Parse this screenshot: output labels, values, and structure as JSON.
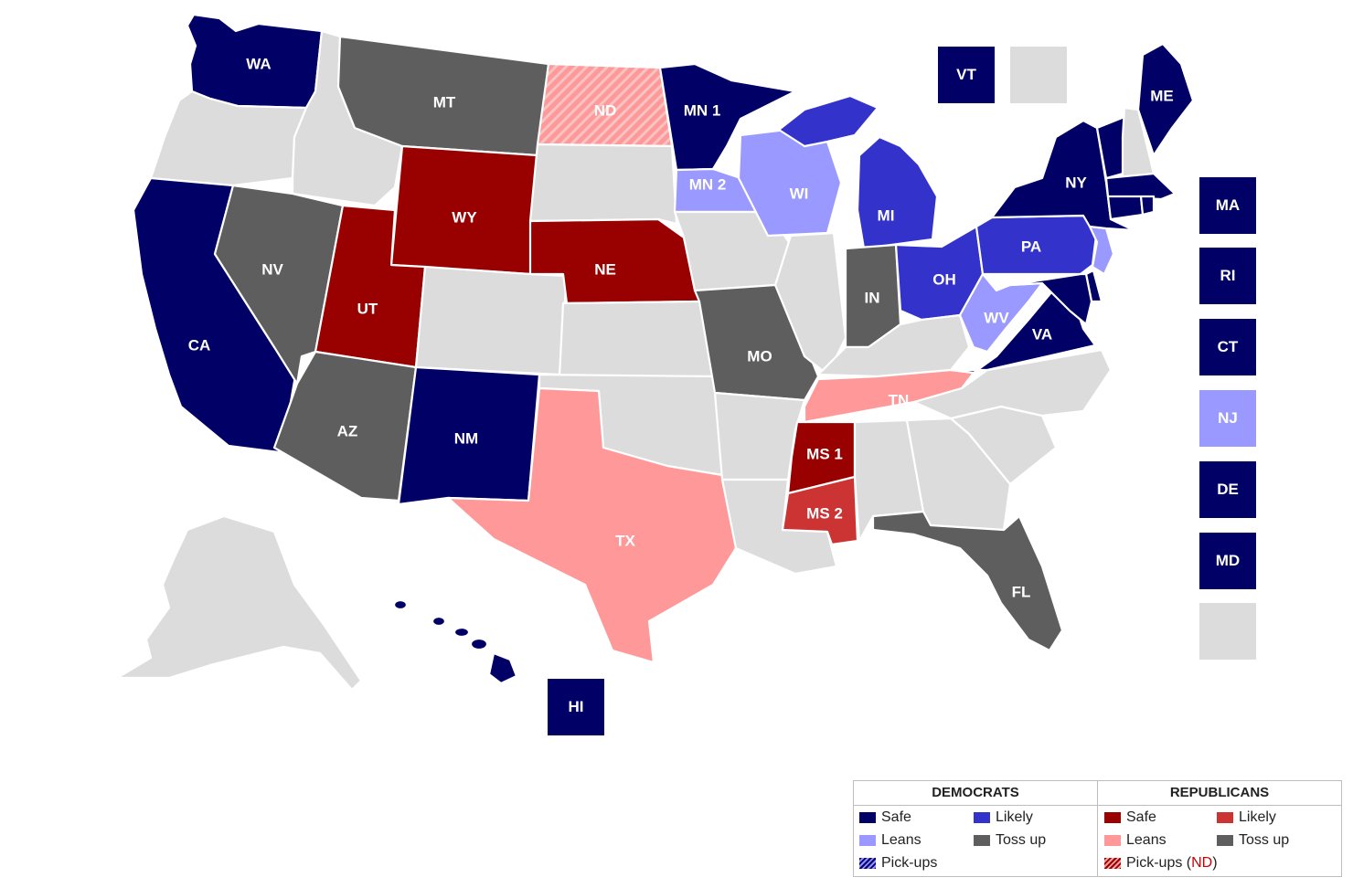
{
  "colors": {
    "dem_safe": "#000066",
    "dem_likely": "#3333cc",
    "dem_leans": "#9999ff",
    "tossup": "#5e5e5e",
    "rep_safe": "#990000",
    "rep_likely": "#cc3333",
    "rep_leans": "#ff9999",
    "no_race": "#dcdcdc"
  },
  "states": {
    "WA": {
      "label": "WA",
      "status": "dem_safe"
    },
    "OR": {
      "label": "",
      "status": "no_race"
    },
    "CA": {
      "label": "CA",
      "status": "dem_safe"
    },
    "ID": {
      "label": "",
      "status": "no_race"
    },
    "NV": {
      "label": "NV",
      "status": "tossup"
    },
    "MT": {
      "label": "MT",
      "status": "tossup"
    },
    "WY": {
      "label": "WY",
      "status": "rep_safe"
    },
    "UT": {
      "label": "UT",
      "status": "rep_safe"
    },
    "AZ": {
      "label": "AZ",
      "status": "tossup"
    },
    "CO": {
      "label": "",
      "status": "no_race"
    },
    "NM": {
      "label": "NM",
      "status": "dem_safe"
    },
    "ND": {
      "label": "ND",
      "status": "rep_leans",
      "pickup": true
    },
    "SD": {
      "label": "",
      "status": "no_race"
    },
    "NE": {
      "label": "NE",
      "status": "rep_safe"
    },
    "KS": {
      "label": "",
      "status": "no_race"
    },
    "OK": {
      "label": "",
      "status": "no_race"
    },
    "TX": {
      "label": "TX",
      "status": "rep_leans"
    },
    "MN1": {
      "label": "MN 1",
      "status": "dem_safe"
    },
    "MN2": {
      "label": "MN 2",
      "status": "dem_leans"
    },
    "IA": {
      "label": "",
      "status": "no_race"
    },
    "MO": {
      "label": "MO",
      "status": "tossup"
    },
    "AR": {
      "label": "",
      "status": "no_race"
    },
    "LA": {
      "label": "",
      "status": "no_race"
    },
    "WI": {
      "label": "WI",
      "status": "dem_leans"
    },
    "IL": {
      "label": "",
      "status": "no_race"
    },
    "MI": {
      "label": "MI",
      "status": "dem_likely"
    },
    "MI_UP": {
      "label": "",
      "status": "dem_likely"
    },
    "IN": {
      "label": "IN",
      "status": "tossup"
    },
    "OH": {
      "label": "OH",
      "status": "dem_likely"
    },
    "KY": {
      "label": "",
      "status": "no_race"
    },
    "TN": {
      "label": "TN",
      "status": "rep_leans"
    },
    "MS1": {
      "label": "MS 1",
      "status": "rep_safe"
    },
    "MS2": {
      "label": "MS 2",
      "status": "rep_likely"
    },
    "AL": {
      "label": "",
      "status": "no_race"
    },
    "GA": {
      "label": "",
      "status": "no_race"
    },
    "FL": {
      "label": "FL",
      "status": "tossup"
    },
    "SC": {
      "label": "",
      "status": "no_race"
    },
    "NC": {
      "label": "",
      "status": "no_race"
    },
    "VA": {
      "label": "VA",
      "status": "dem_safe"
    },
    "WV": {
      "label": "WV",
      "status": "dem_leans"
    },
    "PA": {
      "label": "PA",
      "status": "dem_likely"
    },
    "NY": {
      "label": "NY",
      "status": "dem_safe"
    },
    "NJ": {
      "label": "",
      "status": "dem_leans"
    },
    "DE": {
      "label": "",
      "status": "dem_safe"
    },
    "MD": {
      "label": "",
      "status": "dem_safe"
    },
    "CT": {
      "label": "",
      "status": "dem_safe"
    },
    "RI": {
      "label": "",
      "status": "dem_safe"
    },
    "MA": {
      "label": "",
      "status": "dem_safe"
    },
    "VT": {
      "label": "",
      "status": "dem_safe"
    },
    "NH": {
      "label": "",
      "status": "no_race"
    },
    "ME": {
      "label": "ME",
      "status": "dem_safe"
    },
    "AK": {
      "label": "",
      "status": "no_race"
    },
    "HI": {
      "label": "",
      "status": "dem_safe"
    }
  },
  "small_state_boxes": {
    "VT": {
      "label": "VT",
      "status": "dem_safe"
    },
    "NH": {
      "label": "",
      "status": "no_race"
    },
    "MA": {
      "label": "MA",
      "status": "dem_safe"
    },
    "RI": {
      "label": "RI",
      "status": "dem_safe"
    },
    "CT": {
      "label": "CT",
      "status": "dem_safe"
    },
    "NJ": {
      "label": "NJ",
      "status": "dem_leans"
    },
    "DE": {
      "label": "DE",
      "status": "dem_safe"
    },
    "MD": {
      "label": "MD",
      "status": "dem_safe"
    },
    "DC": {
      "label": "",
      "status": "no_race"
    },
    "HI": {
      "label": "HI",
      "status": "dem_safe"
    }
  },
  "legend": {
    "dem_header": "DEMOCRATS",
    "rep_header": "REPUBLICANS",
    "dem_safe": "Safe",
    "dem_likely": "Likely",
    "dem_leans": "Leans",
    "dem_tossup": "Toss up",
    "dem_pickups": "Pick-ups",
    "rep_safe": "Safe",
    "rep_likely": "Likely",
    "rep_leans": "Leans",
    "rep_tossup": "Toss up",
    "rep_pickups": "Pick-ups (",
    "rep_pickups_state": "ND",
    "rep_pickups_close": ")"
  }
}
